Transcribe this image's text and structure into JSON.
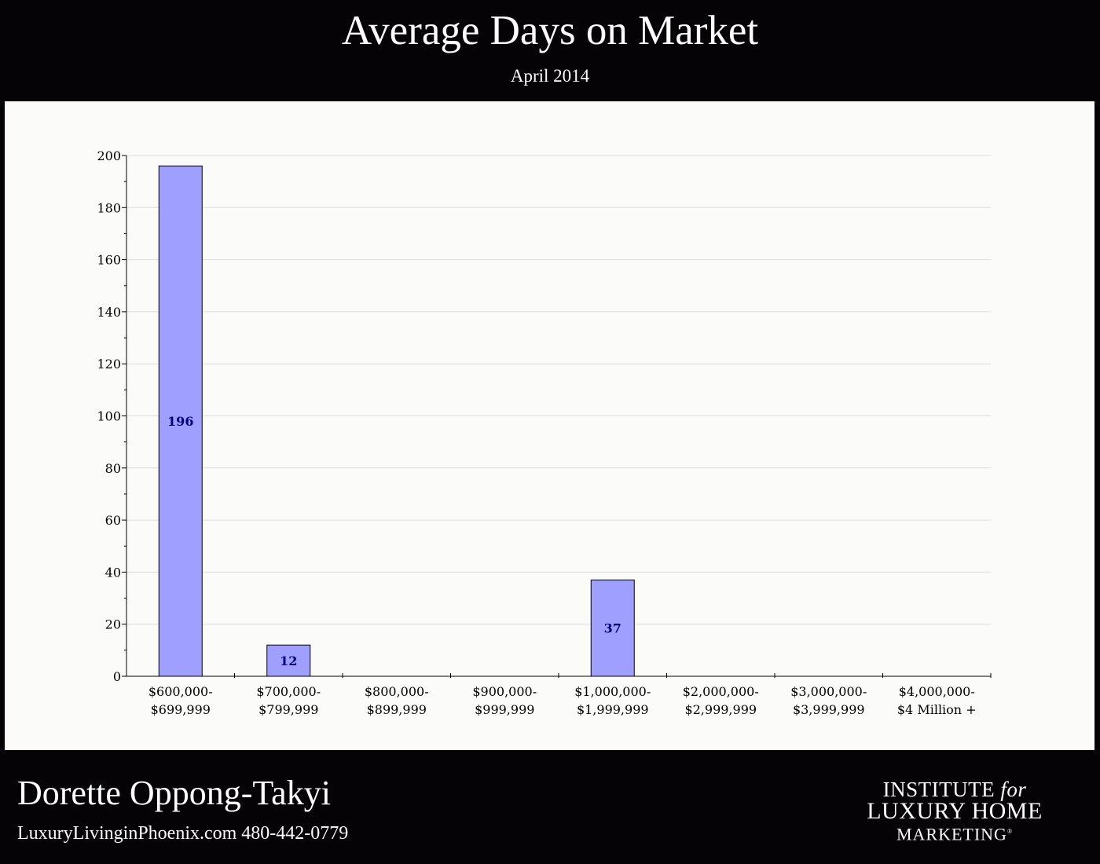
{
  "header": {
    "title": "Average Days on Market",
    "subtitle": "April 2014"
  },
  "chart_data": {
    "type": "bar",
    "categories": [
      [
        "$600,000-",
        "$699,999"
      ],
      [
        "$700,000-",
        "$799,999"
      ],
      [
        "$800,000-",
        "$899,999"
      ],
      [
        "$900,000-",
        "$999,999"
      ],
      [
        "$1,000,000-",
        "$1,999,999"
      ],
      [
        "$2,000,000-",
        "$2,999,999"
      ],
      [
        "$3,000,000-",
        "$3,999,999"
      ],
      [
        "$4,000,000-",
        "$4 Million +"
      ]
    ],
    "values": [
      196,
      12,
      0,
      0,
      37,
      0,
      0,
      0
    ],
    "ylim": [
      0,
      200
    ],
    "yticks": [
      0,
      20,
      40,
      60,
      80,
      100,
      120,
      140,
      160,
      180,
      200
    ],
    "grid": true,
    "bar_color": "#9f9fff",
    "label_color": "#000080"
  },
  "footer": {
    "agent_name": "Dorette Oppong-Takyi",
    "contact": "LuxuryLivinginPhoenix.com 480-442-0779",
    "logo": {
      "line1_word": "INSTITUTE",
      "line1_for": "for",
      "line2": "LUXURY HOME",
      "line3": "MARKETING",
      "mark": "®"
    }
  }
}
